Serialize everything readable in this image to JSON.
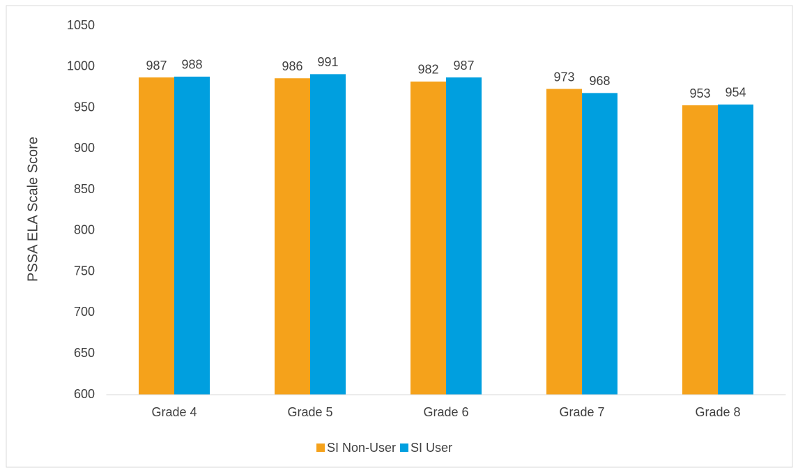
{
  "chart_data": {
    "type": "bar",
    "y_label": "PSSA ELA Scale Score",
    "categories": [
      "Grade 4",
      "Grade 5",
      "Grade 6",
      "Grade 7",
      "Grade 8"
    ],
    "series": [
      {
        "name": "SI Non-User",
        "color": "#f5a21b",
        "values": [
          987,
          986,
          982,
          973,
          953
        ]
      },
      {
        "name": "SI User",
        "color": "#009fdf",
        "values": [
          988,
          991,
          987,
          968,
          954
        ]
      }
    ],
    "ylim": [
      600,
      1050
    ],
    "yticks": [
      600,
      650,
      700,
      750,
      800,
      850,
      900,
      950,
      1000,
      1050
    ],
    "grid": false,
    "legend": "bottom"
  }
}
